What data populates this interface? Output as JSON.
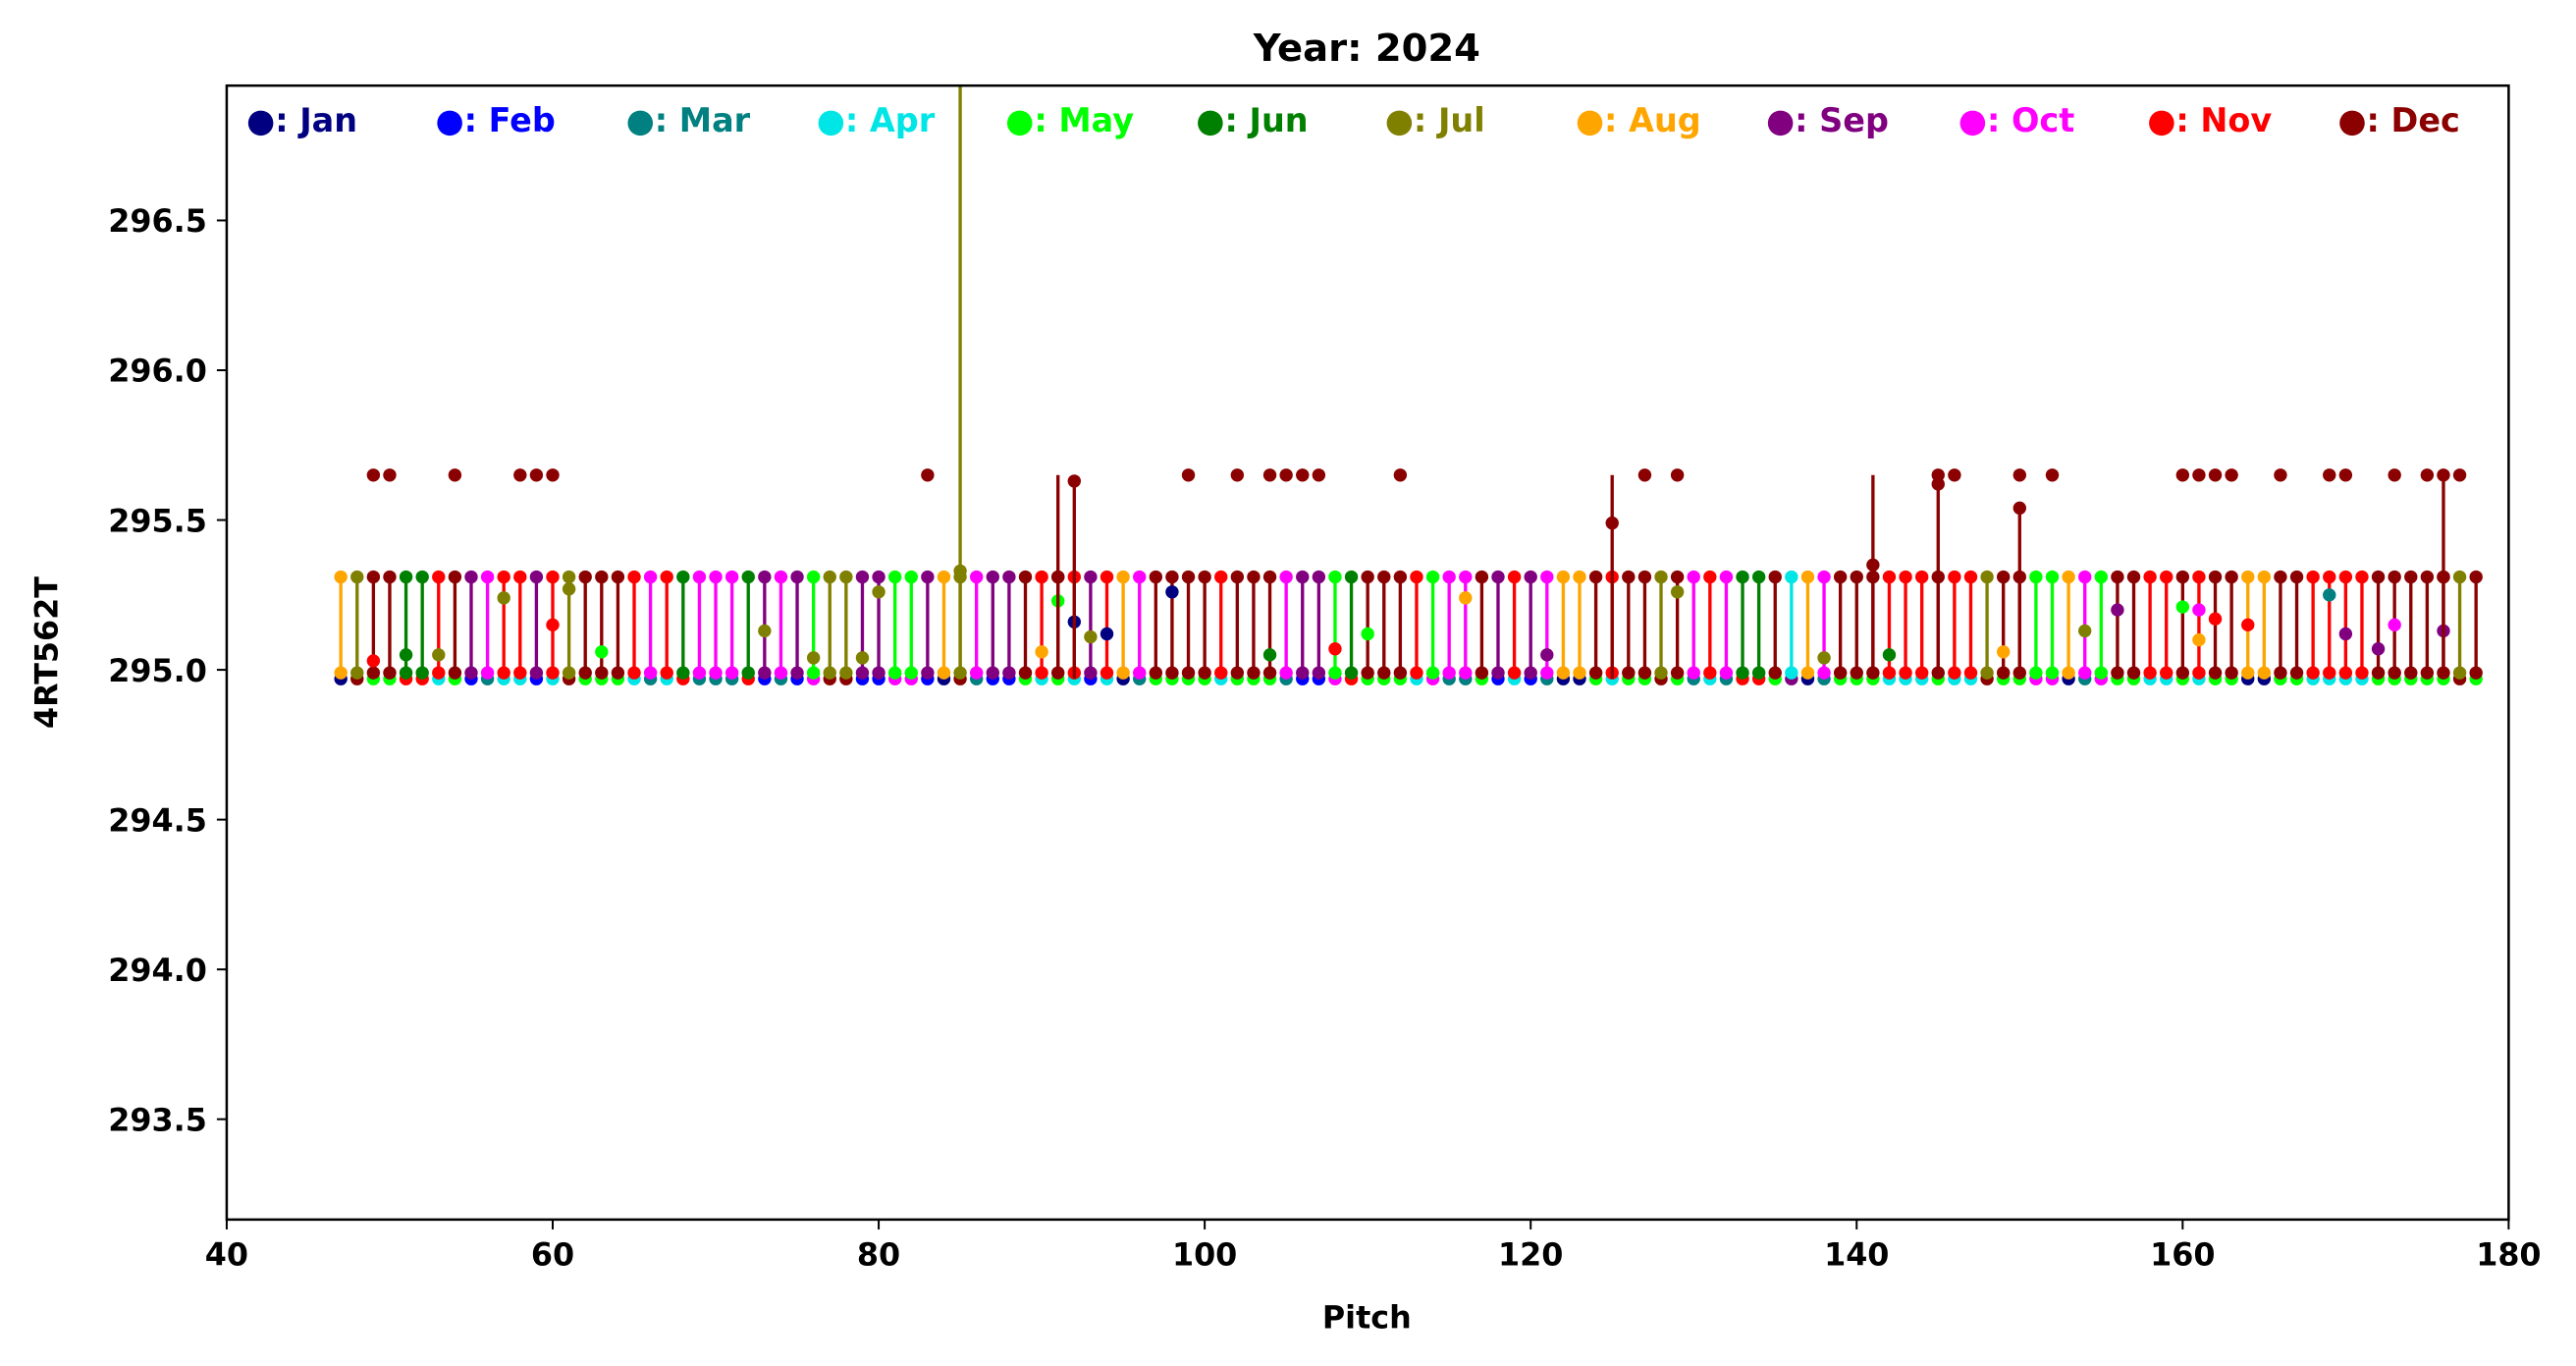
{
  "chart_data": {
    "type": "scatter",
    "subtype": "stem",
    "title": "Year: 2024",
    "xlabel": "Pitch",
    "ylabel": "4RT562T",
    "xlim": [
      40,
      180
    ],
    "ylim": [
      293.165,
      296.95
    ],
    "xticks": [
      "40",
      "60",
      "80",
      "100",
      "120",
      "140",
      "160",
      "180"
    ],
    "yticks": [
      "293.5",
      "294.0",
      "294.5",
      "295.0",
      "295.5",
      "296.0",
      "296.5"
    ],
    "legend_position": "top",
    "legend": [
      {
        "label": "●: Jan",
        "color": "#000080"
      },
      {
        "label": "●: Feb",
        "color": "#0000ff"
      },
      {
        "label": "●: Mar",
        "color": "#008080"
      },
      {
        "label": "●: Apr",
        "color": "#00e5e5"
      },
      {
        "label": "●: May",
        "color": "#00ff00"
      },
      {
        "label": "●: Jun",
        "color": "#008000"
      },
      {
        "label": "●: Jul",
        "color": "#808000"
      },
      {
        "label": "●: Aug",
        "color": "#ffa500"
      },
      {
        "label": "●: Sep",
        "color": "#800080"
      },
      {
        "label": "●: Oct",
        "color": "#ff00ff"
      },
      {
        "label": "●: Nov",
        "color": "#ff0000"
      },
      {
        "label": "●: Dec",
        "color": "#8b0000"
      }
    ],
    "baseline": 294.97,
    "stem_top": 295.31,
    "stems_month_by_pitch_start": 47,
    "stems_month_index": [
      7,
      6,
      11,
      11,
      5,
      5,
      10,
      11,
      8,
      9,
      10,
      10,
      8,
      10,
      6,
      11,
      11,
      11,
      10,
      9,
      10,
      5,
      9,
      9,
      9,
      5,
      8,
      9,
      8,
      4,
      6,
      6,
      8,
      8,
      4,
      4,
      8,
      7,
      6,
      9,
      8,
      8,
      11,
      10,
      11,
      10,
      8,
      10,
      7,
      9,
      11,
      11,
      11,
      11,
      10,
      11,
      11,
      11,
      9,
      8,
      8,
      4,
      5,
      11,
      11,
      11,
      10,
      4,
      9,
      9,
      11,
      8,
      10,
      8,
      9,
      7,
      7,
      11,
      10,
      11,
      11,
      6,
      11,
      9,
      10,
      9,
      5,
      5,
      11,
      3,
      7,
      9,
      11,
      11,
      11,
      10,
      10,
      10,
      11,
      10,
      10,
      6,
      11,
      11,
      4,
      4,
      7,
      9,
      4,
      11,
      11,
      10,
      10,
      11,
      10,
      11,
      11,
      7,
      7,
      11,
      11,
      10,
      10,
      10,
      10,
      11,
      11,
      11,
      11,
      11,
      6,
      11
    ],
    "spikes": [
      {
        "pitch": 85,
        "month": 6,
        "top": 296.95,
        "marker": 295.33
      },
      {
        "pitch": 91,
        "month": 11,
        "top": 295.65,
        "marker": 295.31
      },
      {
        "pitch": 92,
        "month": 11,
        "top": 295.63,
        "marker": 295.63
      },
      {
        "pitch": 125,
        "month": 11,
        "top": 295.65,
        "marker": 295.49
      },
      {
        "pitch": 141,
        "month": 11,
        "top": 295.65,
        "marker": 295.35
      },
      {
        "pitch": 145,
        "month": 11,
        "top": 295.62,
        "marker": 295.62
      },
      {
        "pitch": 150,
        "month": 11,
        "top": 295.54,
        "marker": 295.54
      },
      {
        "pitch": 176,
        "month": 11,
        "top": 295.65,
        "marker": 295.31
      }
    ],
    "dec_outliers_value": 295.65,
    "dec_outliers_pitch": [
      49,
      50,
      54,
      58,
      59,
      60,
      83,
      99,
      102,
      104,
      105,
      106,
      107,
      112,
      127,
      129,
      145,
      146,
      150,
      152,
      160,
      161,
      162,
      163,
      166,
      169,
      170,
      173,
      175,
      176,
      177
    ],
    "mid_points": [
      [
        49,
        10,
        295.03
      ],
      [
        51,
        5,
        295.05
      ],
      [
        53,
        6,
        295.05
      ],
      [
        57,
        6,
        295.24
      ],
      [
        60,
        10,
        295.15
      ],
      [
        61,
        6,
        295.27
      ],
      [
        63,
        4,
        295.06
      ],
      [
        73,
        6,
        295.13
      ],
      [
        76,
        6,
        295.04
      ],
      [
        79,
        6,
        295.04
      ],
      [
        80,
        6,
        295.26
      ],
      [
        90,
        7,
        295.06
      ],
      [
        91,
        4,
        295.23
      ],
      [
        92,
        0,
        295.16
      ],
      [
        93,
        6,
        295.11
      ],
      [
        94,
        0,
        295.12
      ],
      [
        98,
        0,
        295.26
      ],
      [
        104,
        5,
        295.05
      ],
      [
        108,
        10,
        295.07
      ],
      [
        110,
        4,
        295.12
      ],
      [
        116,
        7,
        295.24
      ],
      [
        121,
        8,
        295.05
      ],
      [
        129,
        6,
        295.26
      ],
      [
        138,
        6,
        295.04
      ],
      [
        142,
        5,
        295.05
      ],
      [
        149,
        7,
        295.06
      ],
      [
        154,
        6,
        295.13
      ],
      [
        156,
        8,
        295.2
      ],
      [
        160,
        4,
        295.21
      ],
      [
        161,
        9,
        295.2
      ],
      [
        161,
        7,
        295.1
      ],
      [
        162,
        10,
        295.17
      ],
      [
        164,
        10,
        295.15
      ],
      [
        169,
        2,
        295.25
      ],
      [
        170,
        8,
        295.12
      ],
      [
        172,
        8,
        295.07
      ],
      [
        173,
        9,
        295.15
      ],
      [
        176,
        8,
        295.13
      ]
    ]
  }
}
